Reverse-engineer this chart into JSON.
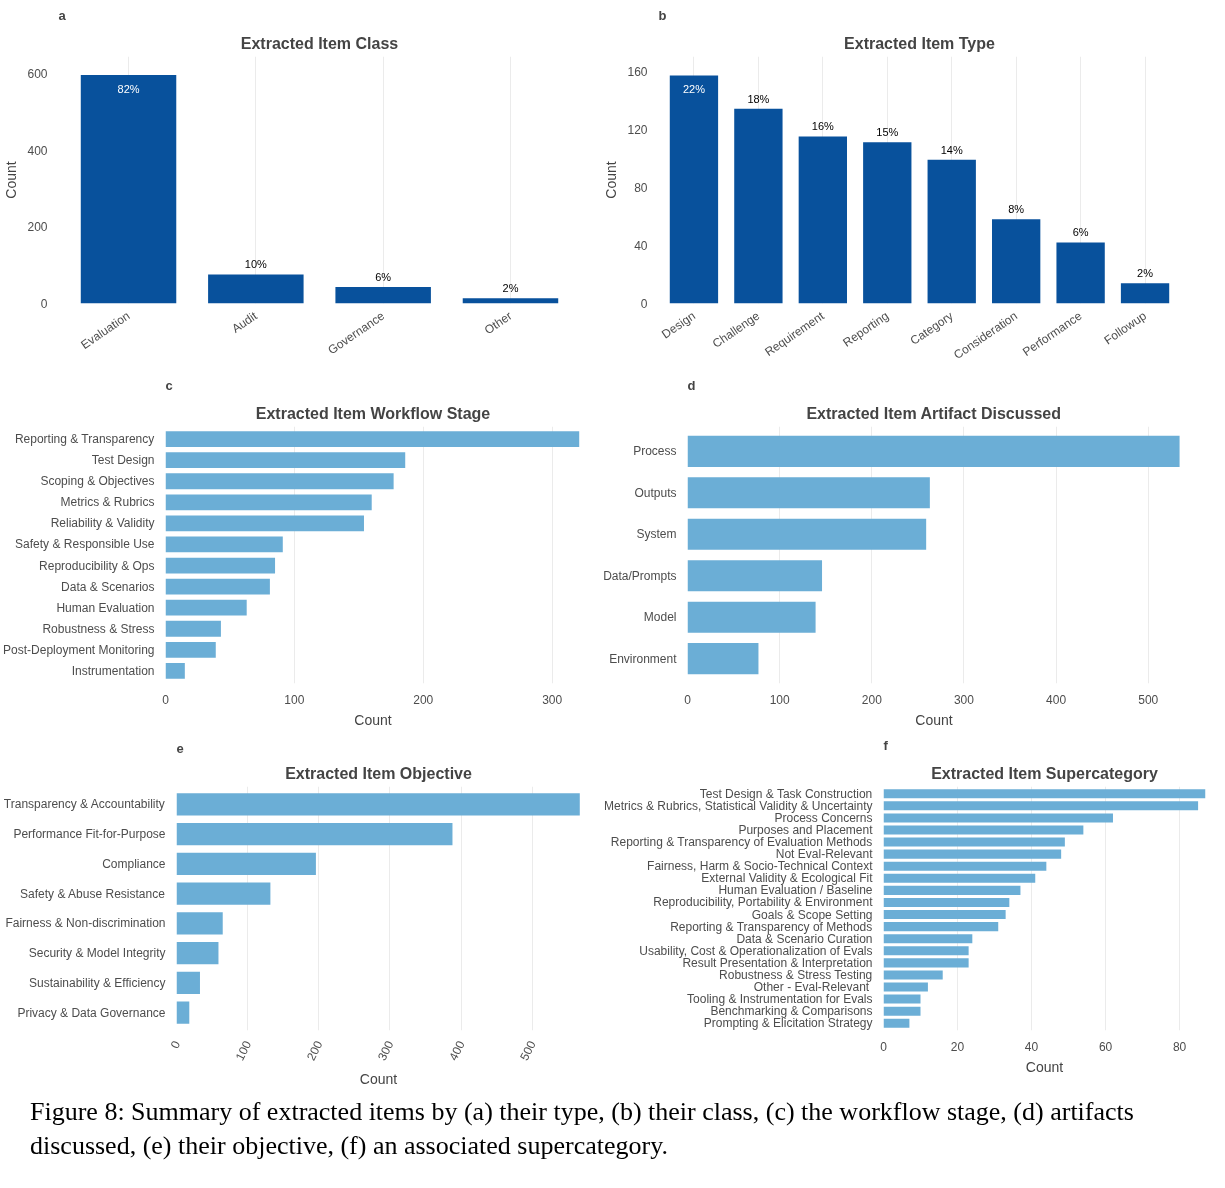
{
  "chart_data": [
    {
      "type": "bar",
      "title": "Extracted Item Class",
      "ylabel": "Count",
      "annotations": [
        "a",
        "Figure 8: Summary of extracted items by (a) their type, (b) their class, (c) the workflow stage, (d) artifacts discussed, (e) their objective, (f) an associated supercategory.",
        {
          "text": "82%",
          "x": "Evaluation",
          "y": 597
        },
        {
          "text": "10%",
          "x": "Audit",
          "y": 76
        },
        {
          "text": "6%",
          "x": "Governance",
          "y": 43
        },
        {
          "text": "2%",
          "x": "Other",
          "y": 14
        }
      ],
      "categories": [
        "Evaluation",
        "Audit",
        "Governance",
        "Other"
      ],
      "values": [
        597,
        76,
        43,
        14
      ],
      "color": "#08519c",
      "ylim": [
        0,
        645
      ],
      "yticks": [
        0,
        200,
        400,
        600
      ],
      "grid": "x"
    },
    {
      "type": "bar",
      "title": "Extracted Item Type",
      "ylabel": "Count",
      "annotations": [
        "b",
        {
          "text": "22%",
          "x": "Design",
          "y": 157
        },
        {
          "text": "18%",
          "x": "Challenge",
          "y": 134
        },
        {
          "text": "16%",
          "x": "Requirement",
          "y": 115
        },
        {
          "text": "15%",
          "x": "Reporting",
          "y": 111
        },
        {
          "text": "14%",
          "x": "Category",
          "y": 99
        },
        {
          "text": "8%",
          "x": "Consideration",
          "y": 58
        },
        {
          "text": "6%",
          "x": "Performance",
          "y": 42
        },
        {
          "text": "2%",
          "x": "Followup",
          "y": 14
        }
      ],
      "categories": [
        "Design",
        "Challenge",
        "Requirement",
        "Reporting",
        "Category",
        "Consideration",
        "Performance",
        "Followup"
      ],
      "values": [
        157,
        134,
        115,
        111,
        99,
        58,
        42,
        14
      ],
      "color": "#08519c",
      "ylim": [
        0,
        170
      ],
      "yticks": [
        0,
        40,
        80,
        120,
        160
      ],
      "grid": "x"
    },
    {
      "type": "bar",
      "orientation": "horizontal",
      "title": "Extracted Item Workflow Stage",
      "xlabel": "Count",
      "annotations": [
        "c"
      ],
      "categories": [
        "Reporting & Transparency",
        "Test Design",
        "Scoping & Objectives",
        "Metrics & Rubrics",
        "Reliability & Validity",
        "Safety & Responsible Use",
        "Reproducibility & Ops",
        "Data & Scenarios",
        "Human Evaluation",
        "Robustness & Stress",
        "Post-Deployment Monitoring",
        "Instrumentation"
      ],
      "values": [
        321,
        186,
        177,
        160,
        154,
        91,
        85,
        81,
        63,
        43,
        39,
        15
      ],
      "color": "#6baed6",
      "xlim": [
        0,
        322
      ],
      "xticks": [
        0,
        100,
        200,
        300
      ],
      "grid": "x"
    },
    {
      "type": "bar",
      "orientation": "horizontal",
      "title": "Extracted Item Artifact Discussed",
      "xlabel": "Count",
      "annotations": [
        "d"
      ],
      "categories": [
        "Process",
        "Outputs",
        "System",
        "Data/Prompts",
        "Model",
        "Environment"
      ],
      "values": [
        534,
        263,
        259,
        146,
        139,
        77
      ],
      "color": "#6baed6",
      "xlim": [
        0,
        535
      ],
      "xticks": [
        0,
        100,
        200,
        300,
        400,
        500
      ],
      "grid": "x"
    },
    {
      "type": "bar",
      "orientation": "horizontal",
      "title": "Extracted Item Objective",
      "xlabel": "Count",
      "annotations": [
        "e"
      ],
      "categories": [
        "Transparency & Accountability",
        "Performance Fit-for-Purpose",
        "Compliance",
        "Safety & Abuse Resistance",
        "Fairness & Non-discrimination",
        "Security & Model Integrity",
        "Sustainability & Efficiency",
        "Privacy & Data Governance"
      ],
      "values": [
        567,
        388,
        196,
        132,
        65,
        59,
        33,
        18
      ],
      "color": "#6baed6",
      "xlim": [
        0,
        568
      ],
      "xticks": [
        0,
        100,
        200,
        300,
        400,
        500
      ],
      "grid": "x"
    },
    {
      "type": "bar",
      "orientation": "horizontal",
      "title": "Extracted Item Supercategory",
      "xlabel": "Count",
      "annotations": [
        "f"
      ],
      "categories": [
        "Test Design & Task Construction",
        "Metrics & Rubrics, Statistical Validity & Uncertainty",
        "Process Concerns",
        "Purposes and Placement",
        "Reporting & Transparency of Evaluation Methods",
        "Not Eval-Relevant",
        "Fairness, Harm & Socio-Technical Context",
        "External Validity & Ecological Fit",
        "Human Evaluation / Baseline",
        "Reproducibility, Portability & Environment",
        "Goals & Scope Setting",
        "Reporting & Transparency of Methods",
        "Data & Scenario Curation",
        "Usability, Cost & Operationalization of Evals",
        "Result Presentation & Interpretation",
        "Robustness & Stress Testing",
        "Other  - Eval-Relevant",
        "Tooling & Instrumentation for Evals",
        "Benchmarking & Comparisons",
        "Prompting & Elicitation Strategy"
      ],
      "values": [
        87,
        85,
        62,
        54,
        49,
        48,
        44,
        41,
        37,
        34,
        33,
        31,
        24,
        23,
        23,
        16,
        12,
        10,
        10,
        7
      ],
      "color": "#6baed6",
      "xlim": [
        0,
        87
      ],
      "xticks": [
        0,
        20,
        40,
        60,
        80
      ],
      "grid": "x"
    }
  ]
}
